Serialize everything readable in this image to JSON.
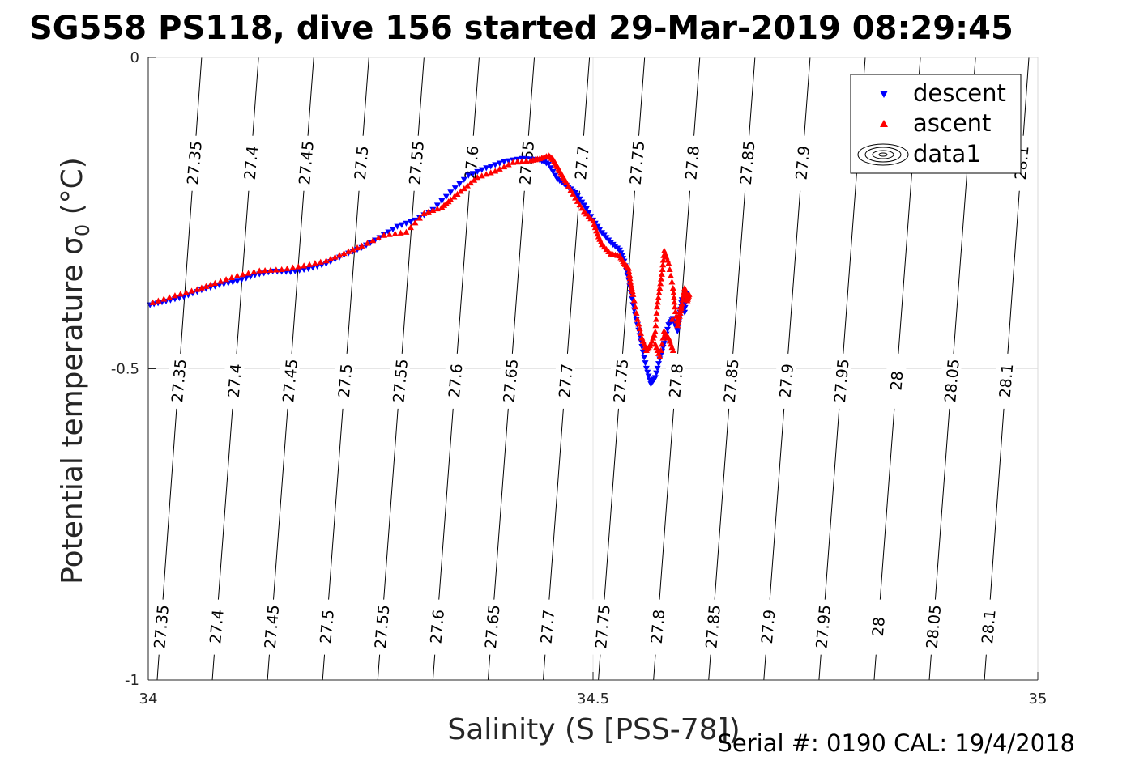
{
  "chart_data": {
    "type": "scatter",
    "title": "SG558 PS118, dive 156 started 29-Mar-2019 08:29:45",
    "xlabel": "Salinity (S [PSS-78])",
    "ylabel": "Potential temperature σ",
    "ylabel_sub": "0",
    "ylabel_unit": " (°C)",
    "xlim": [
      34,
      35
    ],
    "ylim": [
      -1,
      0
    ],
    "x_ticks": [
      34,
      34.5,
      35
    ],
    "x_tick_labels": [
      "34",
      "34.5",
      "35"
    ],
    "y_ticks": [
      -1,
      -0.5,
      0
    ],
    "y_tick_labels": [
      "-1",
      "-0.5",
      "0"
    ],
    "grid": true,
    "legend_position": "top-right",
    "legend": [
      "descent",
      "ascent",
      "data1"
    ],
    "footer": "Serial #: 0190  CAL: 19/4/2018",
    "contours": {
      "levels": [
        27.35,
        27.4,
        27.45,
        27.5,
        27.55,
        27.6,
        27.65,
        27.7,
        27.75,
        27.8,
        27.85,
        27.9,
        27.95,
        28,
        28.05,
        28.1
      ],
      "labels": [
        "27.35",
        "27.4",
        "27.45",
        "27.5",
        "27.55",
        "27.6",
        "27.65",
        "27.7",
        "27.75",
        "27.8",
        "27.85",
        "27.9",
        "27.95",
        "28",
        "28.05",
        "28.1"
      ],
      "s_at_temp_0": [
        34.06,
        34.124,
        34.186,
        34.248,
        34.31,
        34.372,
        34.434,
        34.496,
        34.558,
        34.62,
        34.682,
        34.744,
        34.806,
        34.868,
        34.93,
        34.99
      ],
      "s_at_temp_-1": [
        34.01,
        34.072,
        34.134,
        34.196,
        34.258,
        34.32,
        34.382,
        34.444,
        34.506,
        34.568,
        34.63,
        34.692,
        34.754,
        34.816,
        34.878,
        34.94
      ],
      "label_rows": [
        {
          "temp": -0.17,
          "levels": [
            "27.35",
            "27.4",
            "27.45",
            "27.5",
            "27.55",
            "27.6",
            "27.65",
            "27.7",
            "27.75",
            "27.8",
            "27.85",
            "27.9",
            "28.1"
          ]
        },
        {
          "temp": -0.52,
          "levels": [
            "27.35",
            "27.4",
            "27.45",
            "27.5",
            "27.55",
            "27.6",
            "27.65",
            "27.7",
            "27.75",
            "27.8",
            "27.85",
            "27.9",
            "27.95",
            "28",
            "28.05",
            "28.1"
          ]
        },
        {
          "temp": -0.915,
          "levels": [
            "27.35",
            "27.4",
            "27.45",
            "27.5",
            "27.55",
            "27.6",
            "27.65",
            "27.7",
            "27.75",
            "27.8",
            "27.85",
            "27.9",
            "27.95",
            "28",
            "28.05",
            "28.1"
          ]
        }
      ]
    },
    "series": [
      {
        "name": "descent",
        "marker": "triangle-down",
        "color": "#0000ff",
        "points": [
          [
            34.002,
            -0.398
          ],
          [
            34.02,
            -0.392
          ],
          [
            34.04,
            -0.385
          ],
          [
            34.06,
            -0.374
          ],
          [
            34.08,
            -0.366
          ],
          [
            34.1,
            -0.36
          ],
          [
            34.12,
            -0.35
          ],
          [
            34.14,
            -0.344
          ],
          [
            34.16,
            -0.345
          ],
          [
            34.18,
            -0.34
          ],
          [
            34.2,
            -0.332
          ],
          [
            34.22,
            -0.318
          ],
          [
            34.24,
            -0.306
          ],
          [
            34.26,
            -0.29
          ],
          [
            34.28,
            -0.272
          ],
          [
            34.3,
            -0.262
          ],
          [
            34.32,
            -0.245
          ],
          [
            34.34,
            -0.217
          ],
          [
            34.36,
            -0.19
          ],
          [
            34.38,
            -0.178
          ],
          [
            34.4,
            -0.168
          ],
          [
            34.42,
            -0.163
          ],
          [
            34.44,
            -0.165
          ],
          [
            34.45,
            -0.172
          ],
          [
            34.46,
            -0.196
          ],
          [
            34.47,
            -0.206
          ],
          [
            34.48,
            -0.218
          ],
          [
            34.49,
            -0.238
          ],
          [
            34.5,
            -0.262
          ],
          [
            34.51,
            -0.282
          ],
          [
            34.52,
            -0.298
          ],
          [
            34.53,
            -0.31
          ],
          [
            34.535,
            -0.328
          ],
          [
            34.54,
            -0.358
          ],
          [
            34.545,
            -0.398
          ],
          [
            34.55,
            -0.43
          ],
          [
            34.555,
            -0.465
          ],
          [
            34.56,
            -0.5
          ],
          [
            34.565,
            -0.525
          ],
          [
            34.57,
            -0.515
          ],
          [
            34.575,
            -0.485
          ],
          [
            34.58,
            -0.46
          ],
          [
            34.585,
            -0.43
          ],
          [
            34.59,
            -0.42
          ],
          [
            34.595,
            -0.44
          ],
          [
            34.598,
            -0.41
          ],
          [
            34.6,
            -0.39
          ],
          [
            34.603,
            -0.41
          ],
          [
            34.605,
            -0.38
          ]
        ]
      },
      {
        "name": "ascent",
        "marker": "triangle-up",
        "color": "#ff0000",
        "points": [
          [
            34.005,
            -0.393
          ],
          [
            34.03,
            -0.382
          ],
          [
            34.055,
            -0.372
          ],
          [
            34.075,
            -0.362
          ],
          [
            34.1,
            -0.35
          ],
          [
            34.125,
            -0.342
          ],
          [
            34.15,
            -0.34
          ],
          [
            34.175,
            -0.334
          ],
          [
            34.2,
            -0.326
          ],
          [
            34.22,
            -0.314
          ],
          [
            34.24,
            -0.302
          ],
          [
            34.265,
            -0.285
          ],
          [
            34.29,
            -0.28
          ],
          [
            34.31,
            -0.25
          ],
          [
            34.33,
            -0.24
          ],
          [
            34.34,
            -0.228
          ],
          [
            34.355,
            -0.21
          ],
          [
            34.37,
            -0.192
          ],
          [
            34.39,
            -0.182
          ],
          [
            34.41,
            -0.168
          ],
          [
            34.43,
            -0.165
          ],
          [
            34.44,
            -0.162
          ],
          [
            34.45,
            -0.157
          ],
          [
            34.455,
            -0.163
          ],
          [
            34.46,
            -0.175
          ],
          [
            34.465,
            -0.188
          ],
          [
            34.47,
            -0.2
          ],
          [
            34.48,
            -0.225
          ],
          [
            34.49,
            -0.247
          ],
          [
            34.5,
            -0.262
          ],
          [
            34.505,
            -0.283
          ],
          [
            34.51,
            -0.3
          ],
          [
            34.52,
            -0.315
          ],
          [
            34.53,
            -0.318
          ],
          [
            34.535,
            -0.33
          ],
          [
            34.54,
            -0.338
          ],
          [
            34.542,
            -0.36
          ],
          [
            34.545,
            -0.38
          ],
          [
            34.55,
            -0.42
          ],
          [
            34.555,
            -0.45
          ],
          [
            34.56,
            -0.47
          ],
          [
            34.565,
            -0.46
          ],
          [
            34.57,
            -0.44
          ],
          [
            34.572,
            -0.4
          ],
          [
            34.575,
            -0.37
          ],
          [
            34.578,
            -0.34
          ],
          [
            34.58,
            -0.31
          ],
          [
            34.585,
            -0.33
          ],
          [
            34.59,
            -0.37
          ],
          [
            34.592,
            -0.4
          ],
          [
            34.595,
            -0.43
          ],
          [
            34.598,
            -0.41
          ],
          [
            34.6,
            -0.395
          ],
          [
            34.603,
            -0.37
          ],
          [
            34.606,
            -0.39
          ],
          [
            34.608,
            -0.38
          ],
          [
            34.57,
            -0.46
          ],
          [
            34.575,
            -0.48
          ],
          [
            34.58,
            -0.44
          ],
          [
            34.585,
            -0.45
          ],
          [
            34.59,
            -0.47
          ]
        ]
      }
    ]
  }
}
